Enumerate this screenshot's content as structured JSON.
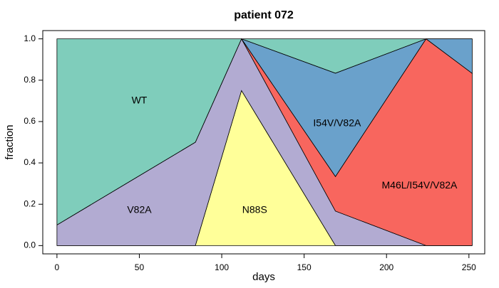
{
  "chart_data": {
    "type": "stacked_area",
    "title": "patient 072",
    "xlabel": "days",
    "ylabel": "fraction",
    "x": [
      0,
      84,
      112,
      169,
      224,
      252
    ],
    "series": [
      {
        "name": "N88S",
        "color": "#ffff99",
        "values": [
          0,
          0,
          0.75,
          0,
          0,
          0
        ]
      },
      {
        "name": "V82A",
        "color": "#b2abd2",
        "values": [
          0.1,
          0.5,
          0.25,
          0.167,
          0,
          0
        ]
      },
      {
        "name": "M46L/I54V/V82A",
        "color": "#f8665e",
        "values": [
          0,
          0,
          0,
          0.167,
          1.0,
          0.833
        ]
      },
      {
        "name": "I54V/V82A",
        "color": "#6aa1cb",
        "values": [
          0,
          0,
          0,
          0.5,
          0,
          0.167
        ]
      },
      {
        "name": "WT",
        "color": "#7fcdbb",
        "values": [
          0.9,
          0.5,
          0,
          0.166,
          0,
          0
        ]
      }
    ],
    "xlim": [
      -8.6,
      259.6
    ],
    "xticks": [
      0,
      50,
      100,
      150,
      200,
      250
    ],
    "ylim": [
      -0.04,
      1.04
    ],
    "yticks": [
      {
        "value": 0,
        "label": "0.0"
      },
      {
        "value": 0.2,
        "label": "0.2"
      },
      {
        "value": 0.4,
        "label": "0.4"
      },
      {
        "value": 0.6,
        "label": "0.6"
      },
      {
        "value": 0.8,
        "label": "0.8"
      },
      {
        "value": 1.0,
        "label": "1.0"
      }
    ]
  }
}
